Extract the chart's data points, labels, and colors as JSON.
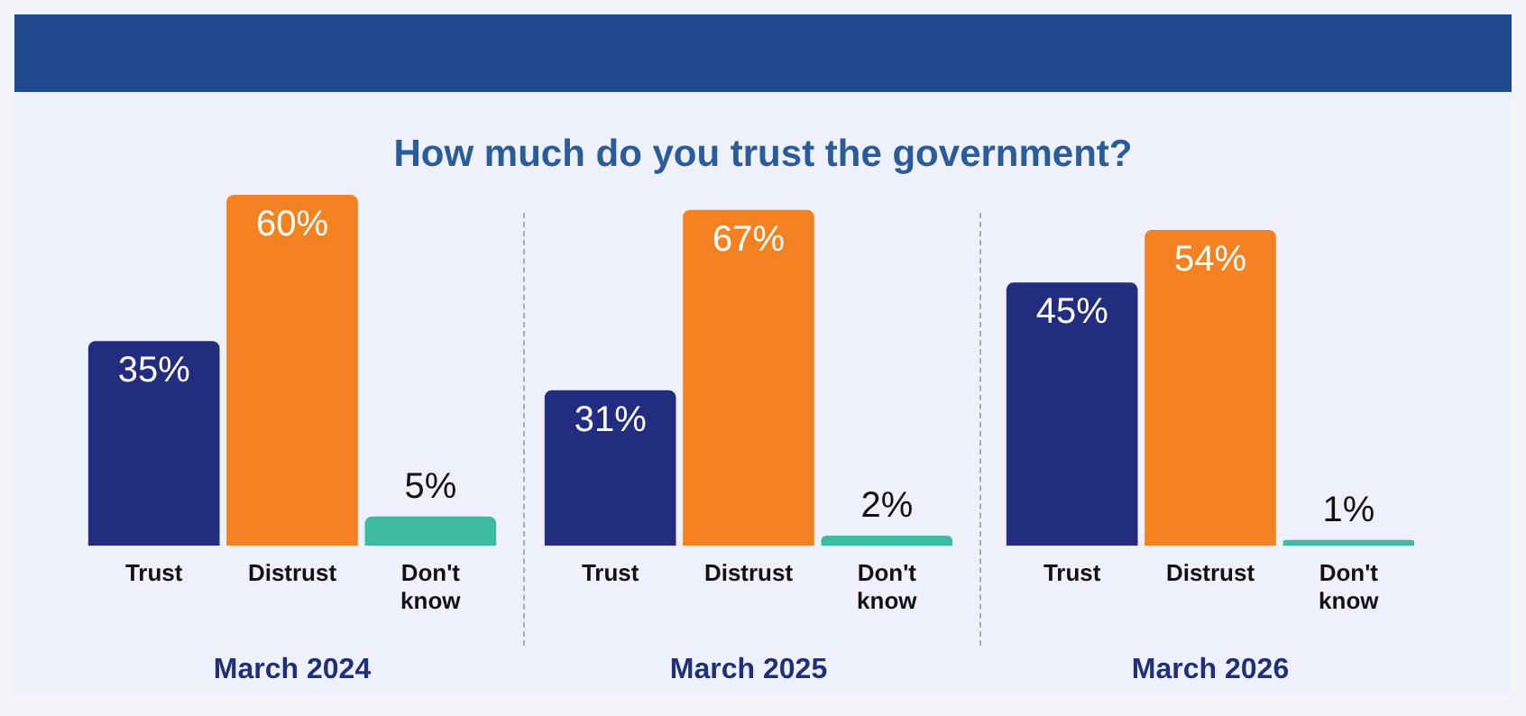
{
  "chart_data": [
    {
      "type": "bar",
      "title": "How much do you trust the government?",
      "xlabel": "March 2024",
      "categories": [
        "Trust",
        "Distrust",
        "Don't know"
      ],
      "values": [
        35,
        60,
        5
      ],
      "colors": [
        "#232d7f",
        "#f58220",
        "#3dbb9f"
      ],
      "value_labels": [
        "35%",
        "60%",
        "5%"
      ],
      "grid": false,
      "legend": false,
      "tick_labels": "x"
    },
    {
      "type": "bar",
      "xlabel": "March 2025",
      "categories": [
        "Trust",
        "Distrust",
        "Don't know"
      ],
      "values": [
        31,
        67,
        2
      ],
      "colors": [
        "#232d7f",
        "#f58220",
        "#3dbb9f"
      ],
      "value_labels": [
        "31%",
        "67%",
        "2%"
      ],
      "grid": false,
      "legend": false,
      "tick_labels": "x"
    },
    {
      "type": "bar",
      "xlabel": "March 2026",
      "categories": [
        "Trust",
        "Distrust",
        "Don't know"
      ],
      "values": [
        45,
        54,
        1
      ],
      "colors": [
        "#232d7f",
        "#f58220",
        "#3dbb9f"
      ],
      "value_labels": [
        "45%",
        "54%",
        "1%"
      ],
      "grid": false,
      "legend": false,
      "tick_labels": "x"
    }
  ]
}
